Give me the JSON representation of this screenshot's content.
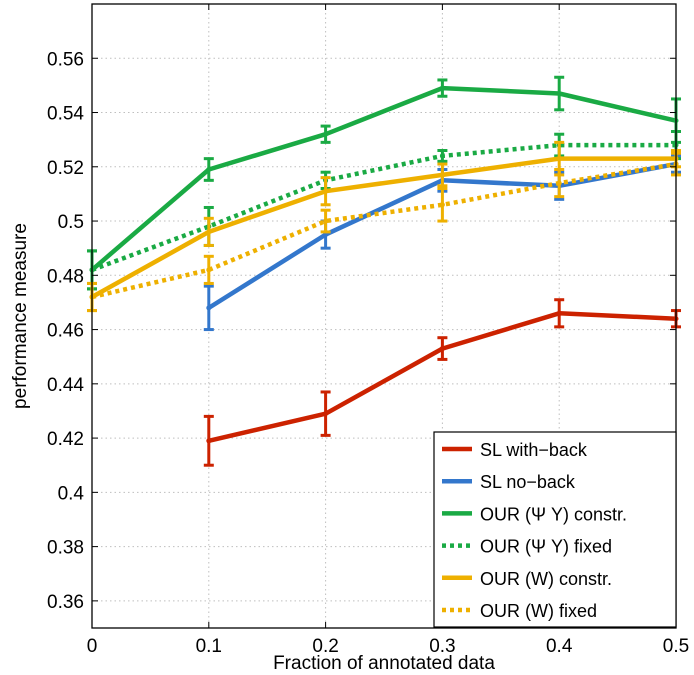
{
  "chart_data": {
    "type": "line",
    "title": "",
    "xlabel": "Fraction of annotated data",
    "ylabel": "performance measure",
    "xlim": [
      0,
      0.5
    ],
    "ylim": [
      0.35,
      0.58
    ],
    "x_ticks": [
      0,
      0.1,
      0.2,
      0.3,
      0.4,
      0.5
    ],
    "x_tick_labels": [
      "0",
      "0.1",
      "0.2",
      "0.3",
      "0.4",
      "0.5"
    ],
    "y_ticks": [
      0.36,
      0.38,
      0.4,
      0.42,
      0.44,
      0.46,
      0.48,
      0.5,
      0.52,
      0.54,
      0.56
    ],
    "y_tick_labels": [
      "0.36",
      "0.38",
      "0.4",
      "0.42",
      "0.44",
      "0.46",
      "0.48",
      "0.5",
      "0.52",
      "0.54",
      "0.56"
    ],
    "grid": true,
    "legend_position": "bottom-right",
    "series": [
      {
        "name": "SL with−back",
        "color": "#cc2200",
        "style": "solid",
        "x": [
          0.1,
          0.2,
          0.3,
          0.4,
          0.5
        ],
        "y": [
          0.419,
          0.429,
          0.453,
          0.466,
          0.464
        ],
        "err": [
          0.009,
          0.008,
          0.004,
          0.005,
          0.003
        ]
      },
      {
        "name": "SL no−back",
        "color": "#3377cc",
        "style": "solid",
        "x": [
          0.1,
          0.2,
          0.3,
          0.4,
          0.5
        ],
        "y": [
          0.468,
          0.495,
          0.515,
          0.513,
          0.521
        ],
        "err": [
          0.008,
          0.005,
          0.004,
          0.005,
          0.003
        ]
      },
      {
        "name": "OUR (Ψ Y) constr.",
        "color": "#1aaa44",
        "style": "solid",
        "x": [
          0,
          0.1,
          0.2,
          0.3,
          0.4,
          0.5
        ],
        "y": [
          0.482,
          0.519,
          0.532,
          0.549,
          0.547,
          0.537
        ],
        "err": [
          0.007,
          0.004,
          0.003,
          0.003,
          0.006,
          0.008
        ]
      },
      {
        "name": "OUR (Ψ Y) fixed",
        "color": "#1aaa44",
        "style": "dotted",
        "x": [
          0,
          0.1,
          0.2,
          0.3,
          0.4,
          0.5
        ],
        "y": [
          0.482,
          0.498,
          0.515,
          0.524,
          0.528,
          0.528
        ],
        "err": [
          0.007,
          0.007,
          0.003,
          0.002,
          0.004,
          0.005
        ]
      },
      {
        "name": "OUR (W) constr.",
        "color": "#eeb000",
        "style": "solid",
        "x": [
          0,
          0.1,
          0.2,
          0.3,
          0.4,
          0.5
        ],
        "y": [
          0.472,
          0.496,
          0.511,
          0.517,
          0.523,
          0.523
        ],
        "err": [
          0.005,
          0.005,
          0.005,
          0.004,
          0.006,
          0.003
        ]
      },
      {
        "name": "OUR (W) fixed",
        "color": "#eeb000",
        "style": "dotted",
        "x": [
          0,
          0.1,
          0.2,
          0.3,
          0.4,
          0.5
        ],
        "y": [
          0.472,
          0.482,
          0.5,
          0.506,
          0.514,
          0.521
        ],
        "err": [
          0.005,
          0.005,
          0.004,
          0.006,
          0.005,
          0.004
        ]
      }
    ]
  }
}
